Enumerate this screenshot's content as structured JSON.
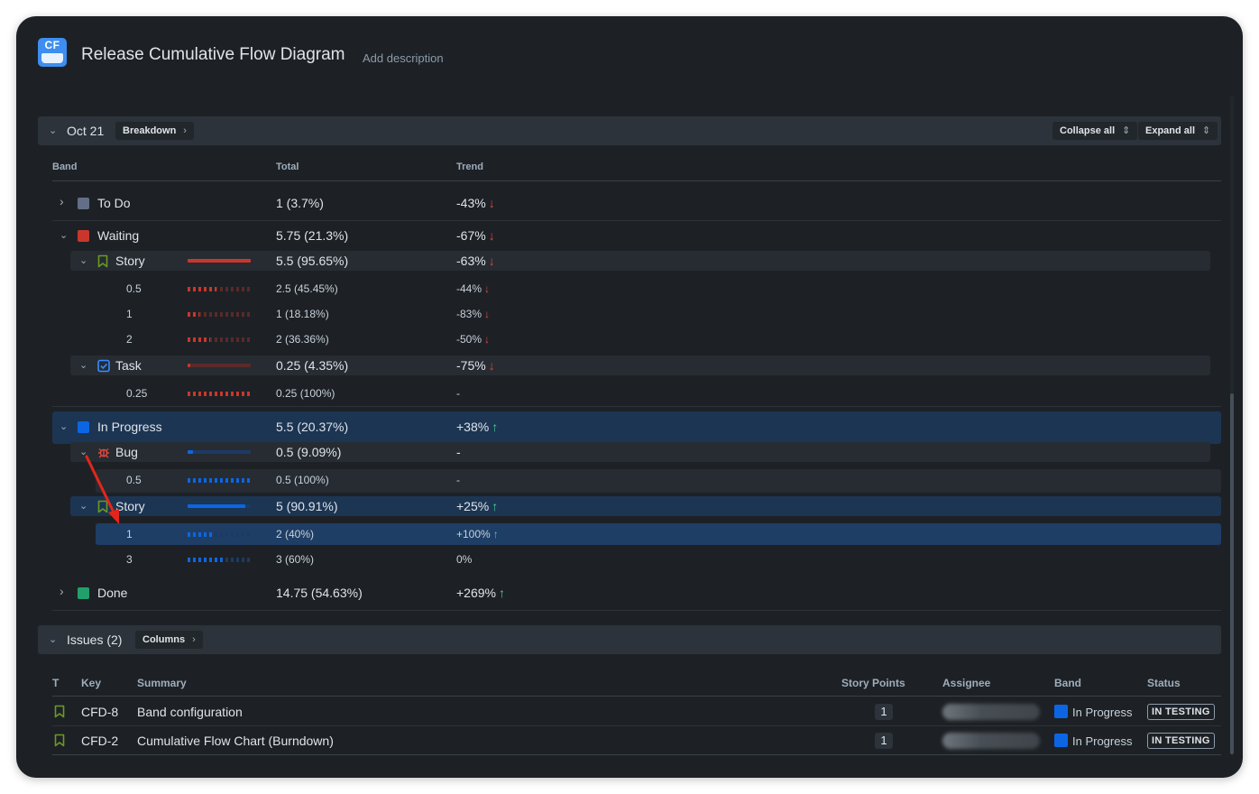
{
  "header": {
    "logo_text": "CF",
    "title": "Release Cumulative Flow Diagram",
    "add_description": "Add description"
  },
  "breakdown_section": {
    "date": "Oct 21",
    "breakdown_label": "Breakdown",
    "collapse_all": "Collapse all",
    "expand_all": "Expand all",
    "columns": {
      "band": "Band",
      "total": "Total",
      "trend": "Trend"
    },
    "rows": [
      {
        "label": "To Do",
        "total": "1 (3.7%)",
        "trend": "-43%",
        "dir": "down",
        "color": "#626f86"
      },
      {
        "label": "Waiting",
        "total": "5.75 (21.3%)",
        "trend": "-67%",
        "dir": "down",
        "color": "#c9372c"
      },
      {
        "label": "Story",
        "total": "5.5 (95.65%)",
        "trend": "-63%",
        "dir": "down",
        "bar": 1.0
      },
      {
        "label": "0.5",
        "total": "2.5 (45.45%)",
        "trend": "-44%",
        "dir": "down",
        "bar": 0.4545
      },
      {
        "label": "1",
        "total": "1 (18.18%)",
        "trend": "-83%",
        "dir": "down",
        "bar": 0.1818
      },
      {
        "label": "2",
        "total": "2 (36.36%)",
        "trend": "-50%",
        "dir": "down",
        "bar": 0.3636
      },
      {
        "label": "Task",
        "total": "0.25 (4.35%)",
        "trend": "-75%",
        "dir": "down",
        "bar": 0.0435
      },
      {
        "label": "0.25",
        "total": "0.25 (100%)",
        "trend": "-",
        "bar": 1.0
      },
      {
        "label": "In Progress",
        "total": "5.5 (20.37%)",
        "trend": "+38%",
        "dir": "up",
        "color": "#0c66e4"
      },
      {
        "label": "Bug",
        "total": "0.5 (9.09%)",
        "trend": "-",
        "bar": 0.0909
      },
      {
        "label": "0.5",
        "total": "0.5 (100%)",
        "trend": "-",
        "bar": 1.0
      },
      {
        "label": "Story",
        "total": "5 (90.91%)",
        "trend": "+25%",
        "dir": "up",
        "bar": 0.9091
      },
      {
        "label": "1",
        "total": "2 (40%)",
        "trend": "+100%",
        "dir": "up",
        "bar": 0.4
      },
      {
        "label": "3",
        "total": "3 (60%)",
        "trend": "0%",
        "bar": 0.6
      },
      {
        "label": "Done",
        "total": "14.75 (54.63%)",
        "trend": "+269%",
        "dir": "up",
        "color": "#22a06b"
      }
    ]
  },
  "arrows": {
    "down": "↓",
    "up": "↑"
  },
  "issues_section": {
    "title": "Issues (2)",
    "columns_label": "Columns",
    "headers": {
      "t": "T",
      "key": "Key",
      "summary": "Summary",
      "story_points": "Story Points",
      "assignee": "Assignee",
      "band": "Band",
      "status": "Status"
    },
    "rows": [
      {
        "key": "CFD-8",
        "summary": "Band configuration",
        "story_points": "1",
        "band": "In Progress",
        "status": "IN TESTING"
      },
      {
        "key": "CFD-2",
        "summary": "Cumulative Flow Chart (Burndown)",
        "story_points": "1",
        "band": "In Progress",
        "status": "IN TESTING"
      }
    ]
  },
  "colors": {
    "background": "#1d2125",
    "panel": "#2c333a",
    "highlight": "#1c3553",
    "waiting": "#c9372c",
    "in_progress": "#0c66e4",
    "done": "#22a06b",
    "todo": "#626f86",
    "story_icon": "#6a9a23",
    "bug_icon": "#e2483d",
    "task_icon": "#388bff",
    "annotation_arrow": "#e2261b"
  }
}
